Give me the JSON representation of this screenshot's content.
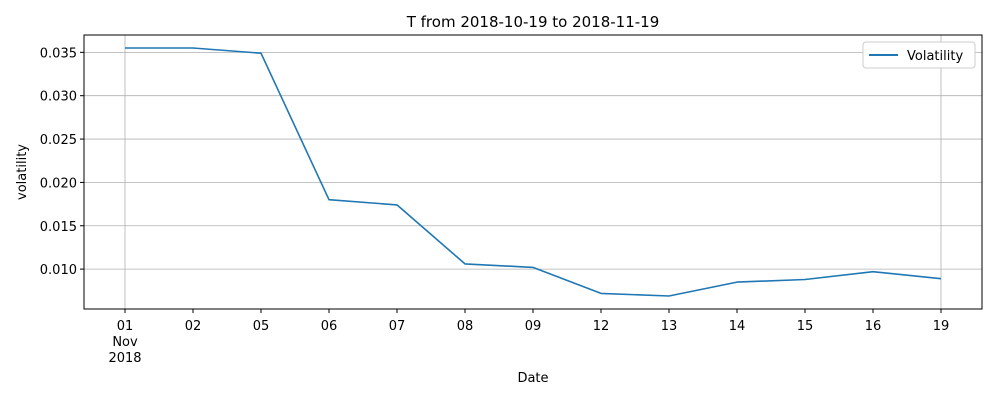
{
  "chart_data": {
    "type": "line",
    "title": "T from 2018-10-19 to 2018-11-19",
    "xlabel": "Date",
    "ylabel": "volatility",
    "x": [
      "2018-11-01",
      "2018-11-02",
      "2018-11-05",
      "2018-11-06",
      "2018-11-07",
      "2018-11-08",
      "2018-11-09",
      "2018-11-12",
      "2018-11-13",
      "2018-11-14",
      "2018-11-15",
      "2018-11-16",
      "2018-11-19"
    ],
    "x_tick_labels": [
      "01",
      "02",
      "05",
      "06",
      "07",
      "08",
      "09",
      "12",
      "13",
      "14",
      "15",
      "16",
      "19"
    ],
    "x_first_tick_sublabels": [
      "Nov",
      "2018"
    ],
    "series": [
      {
        "name": "Volatility",
        "color": "#1f77b4",
        "values": [
          0.0355,
          0.0355,
          0.0349,
          0.018,
          0.0174,
          0.0106,
          0.0102,
          0.0072,
          0.0069,
          0.0085,
          0.0088,
          0.0097,
          0.0089
        ]
      }
    ],
    "ylim": [
      0.0054,
      0.037
    ],
    "y_ticks": [
      0.01,
      0.015,
      0.02,
      0.025,
      0.03,
      0.035
    ],
    "y_tick_labels": [
      "0.010",
      "0.015",
      "0.020",
      "0.025",
      "0.030",
      "0.035"
    ],
    "grid": true,
    "legend_position": "top-right"
  }
}
